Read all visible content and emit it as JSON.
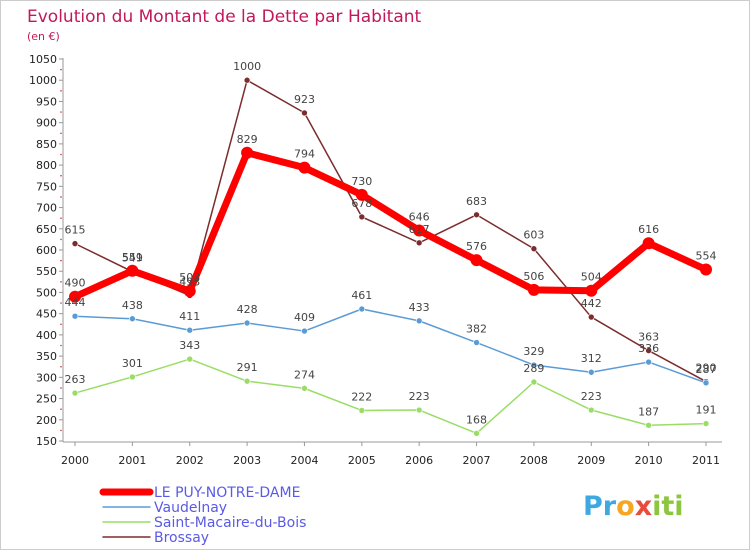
{
  "chart_data": {
    "type": "line",
    "title": "Evolution du Montant de la Dette par Habitant",
    "subtitle": "(en €)",
    "xlabel": "",
    "ylabel": "",
    "categories": [
      "2000",
      "2001",
      "2002",
      "2003",
      "2004",
      "2005",
      "2006",
      "2007",
      "2008",
      "2009",
      "2010",
      "2011"
    ],
    "yticks": [
      "150",
      "200",
      "250",
      "300",
      "350",
      "400",
      "450",
      "500",
      "550",
      "600",
      "650",
      "700",
      "750",
      "800",
      "850",
      "900",
      "950",
      "1000",
      "1050"
    ],
    "ylim": [
      150,
      1050
    ],
    "grid": false,
    "legend_position": "bottom-left",
    "series": [
      {
        "name": "LE PUY-NOTRE-DAME",
        "color": "#ff0000",
        "values": [
          490,
          551,
          503,
          829,
          794,
          730,
          646,
          576,
          506,
          504,
          616,
          554
        ],
        "labels": [
          "490",
          "551",
          "503",
          "829",
          "794",
          "730",
          "646",
          "576",
          "506",
          "504",
          "616",
          "554"
        ]
      },
      {
        "name": "Vaudelnay",
        "color": "#5b9bd5",
        "values": [
          444,
          438,
          411,
          428,
          409,
          461,
          433,
          382,
          329,
          312,
          336,
          287
        ],
        "labels": [
          "444",
          "438",
          "411",
          "428",
          "409",
          "461",
          "433",
          "382",
          "329",
          "312",
          "336",
          "287"
        ]
      },
      {
        "name": "Saint-Macaire-du-Bois",
        "color": "#99dd66",
        "values": [
          263,
          301,
          343,
          291,
          274,
          222,
          223,
          168,
          289,
          223,
          187,
          191
        ],
        "labels": [
          "263",
          "301",
          "343",
          "291",
          "274",
          "222",
          "223",
          "168",
          "289",
          "223",
          "187",
          "191"
        ]
      },
      {
        "name": "Brossay",
        "color": "#7b2c2c",
        "values": [
          615,
          549,
          493,
          1000,
          923,
          678,
          617,
          683,
          603,
          442,
          363,
          290
        ],
        "labels": [
          "615",
          "549",
          "493",
          "1000",
          "923",
          "678",
          "617",
          "683",
          "603",
          "442",
          "363",
          "290"
        ]
      }
    ]
  },
  "branding": {
    "letters": [
      "P",
      "r",
      "o",
      "x",
      "i",
      "t",
      "i"
    ],
    "letter_colors": [
      "#3ea9e0",
      "#3ea9e0",
      "#f5a623",
      "#e94b3c",
      "#8cc63f",
      "#8cc63f",
      "#8cc63f"
    ]
  }
}
